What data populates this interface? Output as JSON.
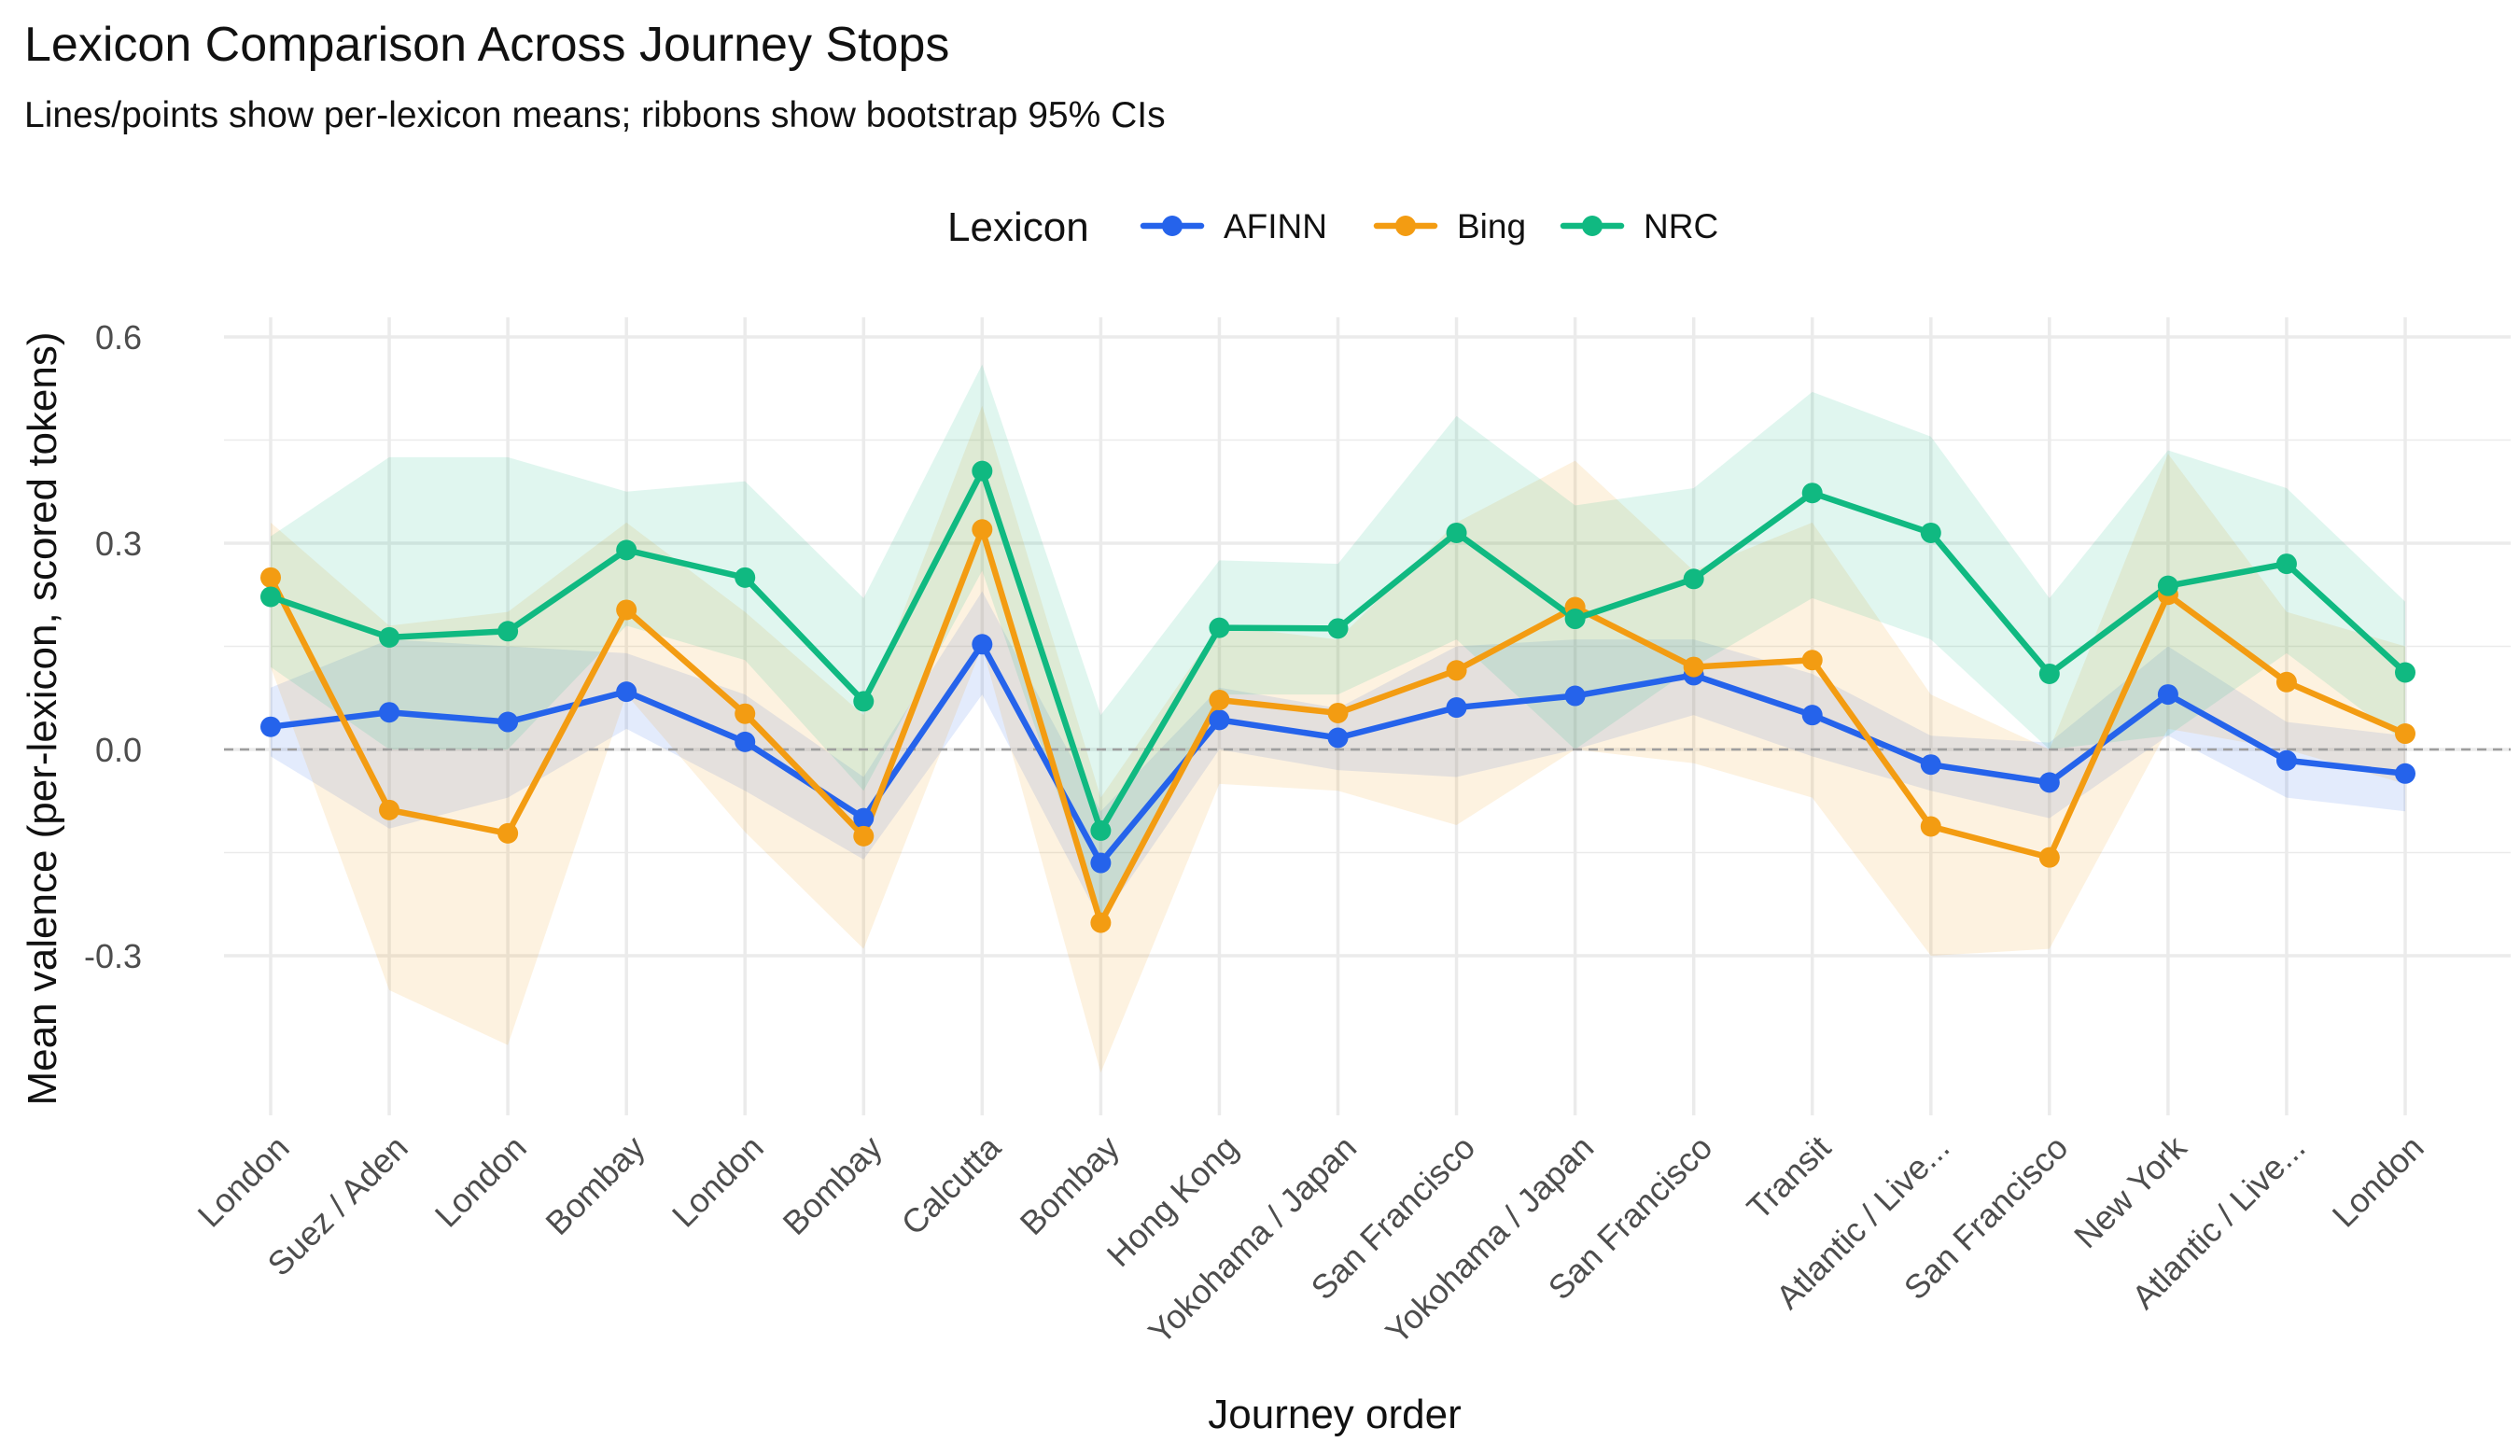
{
  "colors": {
    "AFINN": "#2563eb",
    "Bing": "#f39c12",
    "NRC": "#10b981",
    "grid": "#ebebeb",
    "zero_line": "#9e9e9e",
    "text": "#111111",
    "tick_text": "#4d4d4d"
  },
  "chart_data": {
    "type": "line",
    "title": "Lexicon Comparison Across Journey Stops",
    "subtitle": "Lines/points show per-lexicon means; ribbons show bootstrap 95% CIs",
    "xlabel": "Journey order",
    "ylabel": "Mean valence (per-lexicon, scored tokens)",
    "legend_title": "Lexicon",
    "legend_position": "top",
    "grid": true,
    "ylim": [
      -0.52,
      0.62
    ],
    "yticks": [
      -0.3,
      0.0,
      0.3,
      0.6
    ],
    "ytick_labels": [
      "-0.3",
      "0.0",
      "0.3",
      "0.6"
    ],
    "zero_line": "dashed",
    "categories": [
      "London",
      "Suez / Aden",
      "London",
      "Bombay",
      "London",
      "Bombay",
      "Calcutta",
      "Bombay",
      "Hong Kong",
      "Yokohama / Japan",
      "San Francisco",
      "Yokohama / Japan",
      "San Francisco",
      "Transit",
      "Atlantic / Live...",
      "San Francisco",
      "New York",
      "Atlantic / Live...",
      "London"
    ],
    "series": [
      {
        "name": "AFINN",
        "values": [
          0.033,
          0.054,
          0.04,
          0.084,
          0.011,
          -0.1,
          0.153,
          -0.165,
          0.043,
          0.017,
          0.061,
          0.078,
          0.108,
          0.05,
          -0.022,
          -0.048,
          0.08,
          -0.016,
          -0.035
        ],
        "ci_low": [
          -0.01,
          -0.115,
          -0.07,
          0.03,
          -0.06,
          -0.16,
          0.08,
          -0.25,
          0.0,
          -0.03,
          -0.04,
          0.0,
          0.05,
          -0.01,
          -0.06,
          -0.1,
          0.02,
          -0.07,
          -0.09
        ],
        "ci_high": [
          0.09,
          0.16,
          0.15,
          0.14,
          0.08,
          -0.04,
          0.23,
          -0.09,
          0.09,
          0.06,
          0.15,
          0.16,
          0.16,
          0.11,
          0.02,
          0.01,
          0.15,
          0.04,
          0.02
        ]
      },
      {
        "name": "Bing",
        "values": [
          0.25,
          -0.088,
          -0.122,
          0.203,
          0.052,
          -0.126,
          0.32,
          -0.252,
          0.072,
          0.053,
          0.115,
          0.207,
          0.12,
          0.13,
          -0.112,
          -0.157,
          0.225,
          0.098,
          0.023
        ],
        "ci_low": [
          0.12,
          -0.35,
          -0.43,
          0.08,
          -0.12,
          -0.29,
          0.15,
          -0.47,
          -0.05,
          -0.06,
          -0.11,
          0.0,
          -0.02,
          -0.07,
          -0.3,
          -0.29,
          0.03,
          0.0,
          -0.05
        ],
        "ci_high": [
          0.33,
          0.18,
          0.2,
          0.33,
          0.2,
          0.05,
          0.5,
          -0.07,
          0.18,
          0.16,
          0.33,
          0.42,
          0.26,
          0.33,
          0.08,
          0.0,
          0.43,
          0.2,
          0.15
        ]
      },
      {
        "name": "NRC",
        "values": [
          0.222,
          0.163,
          0.172,
          0.29,
          0.25,
          0.07,
          0.405,
          -0.118,
          0.177,
          0.176,
          0.315,
          0.19,
          0.248,
          0.373,
          0.315,
          0.11,
          0.238,
          0.27,
          0.112
        ],
        "ci_low": [
          0.12,
          0.0,
          0.0,
          0.18,
          0.13,
          -0.06,
          0.26,
          -0.25,
          0.08,
          0.08,
          0.16,
          0.0,
          0.12,
          0.22,
          0.16,
          0.0,
          0.02,
          0.14,
          0.01
        ],
        "ci_high": [
          0.31,
          0.425,
          0.425,
          0.375,
          0.39,
          0.22,
          0.56,
          0.05,
          0.275,
          0.27,
          0.485,
          0.355,
          0.38,
          0.52,
          0.455,
          0.22,
          0.435,
          0.38,
          0.215
        ]
      }
    ]
  }
}
